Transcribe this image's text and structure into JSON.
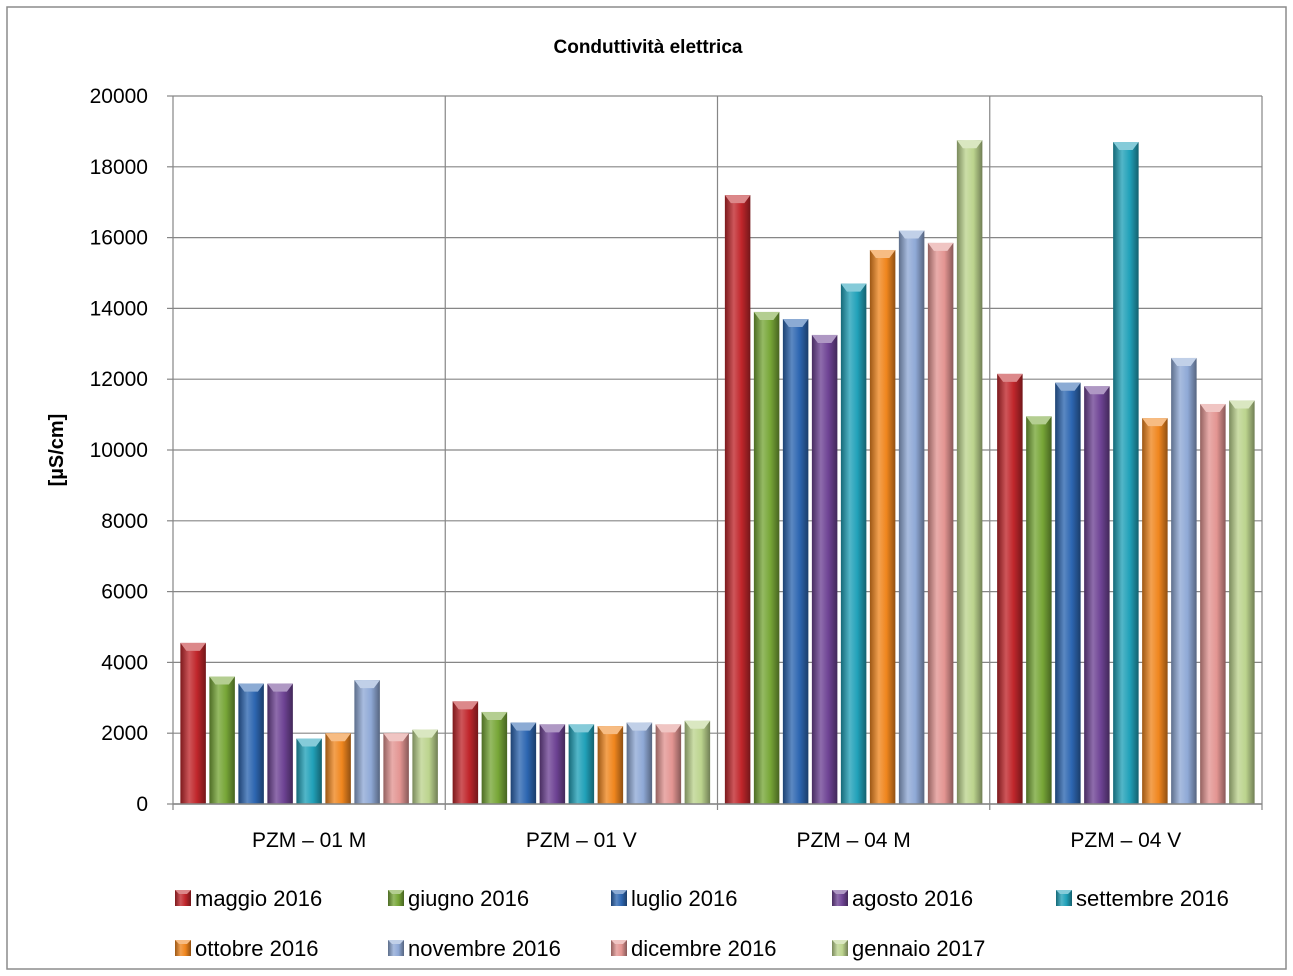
{
  "chart_data": {
    "type": "bar",
    "title": "Conduttività elettrica",
    "ylabel": "[µS/cm]",
    "xlabel": "",
    "ylim": [
      0,
      20000
    ],
    "yticks": [
      0,
      2000,
      4000,
      6000,
      8000,
      10000,
      12000,
      14000,
      16000,
      18000,
      20000
    ],
    "categories": [
      "PZM – 01 M",
      "PZM – 01 V",
      "PZM – 04 M",
      "PZM – 04 V"
    ],
    "grid": true,
    "legend_position": "bottom",
    "series": [
      {
        "name": "maggio 2016",
        "color": "#c0262b",
        "values": [
          4550,
          2900,
          17200,
          12150
        ]
      },
      {
        "name": "giugno 2016",
        "color": "#77a637",
        "values": [
          3600,
          2600,
          13900,
          10950
        ]
      },
      {
        "name": "luglio 2016",
        "color": "#2d66b1",
        "values": [
          3400,
          2300,
          13700,
          11900
        ]
      },
      {
        "name": "agosto 2016",
        "color": "#6e4394",
        "values": [
          3400,
          2250,
          13250,
          11800
        ]
      },
      {
        "name": "settembre 2016",
        "color": "#21a1b9",
        "values": [
          1850,
          2250,
          14700,
          18700
        ]
      },
      {
        "name": "ottobre 2016",
        "color": "#f0861e",
        "values": [
          2000,
          2200,
          15650,
          10900
        ]
      },
      {
        "name": "novembre 2016",
        "color": "#8fa9d6",
        "values": [
          3500,
          2300,
          16200,
          12600
        ]
      },
      {
        "name": "dicembre 2016",
        "color": "#e39592",
        "values": [
          2000,
          2250,
          15850,
          11300
        ]
      },
      {
        "name": "gennaio 2017",
        "color": "#bcd48e",
        "values": [
          2100,
          2350,
          18750,
          11400
        ]
      }
    ]
  }
}
